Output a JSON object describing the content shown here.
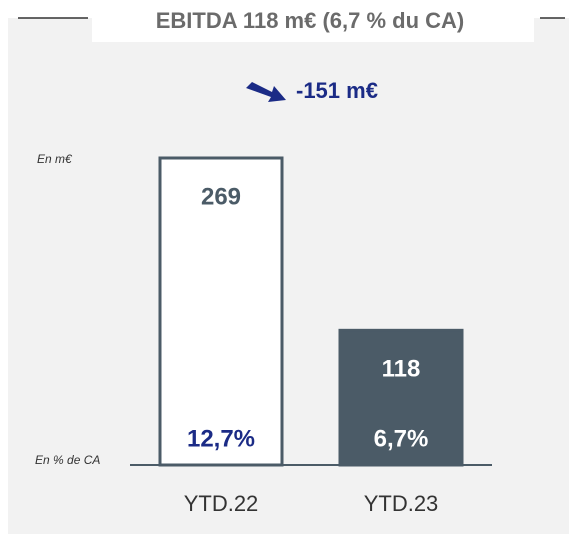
{
  "chart_data": {
    "type": "bar",
    "title": "EBITDA 118 m€ (6,7 % du CA)",
    "annotation": "-151 m€",
    "unit_label": "En m€",
    "pct_axis_label": "En % de CA",
    "categories": [
      "YTD.22",
      "YTD.23"
    ],
    "values": [
      269,
      118
    ],
    "pct_labels": [
      "12,7%",
      "6,7%"
    ],
    "colors": [
      "#ffffff",
      "#4b5b67"
    ],
    "edge_color": "#4b5b67",
    "value_label_colors": [
      "#4b5b67",
      "#ffffff"
    ],
    "pct_label_colors": [
      "#1b2b86",
      "#ffffff"
    ]
  }
}
